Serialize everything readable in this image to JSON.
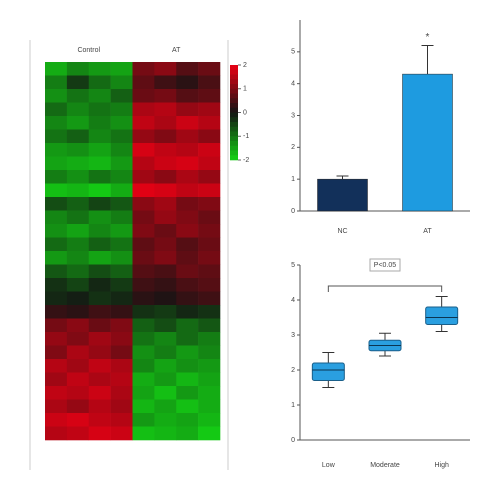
{
  "chart_data": [
    {
      "type": "heatmap",
      "col_groups": [
        "Control",
        "AT"
      ],
      "colorbar_ticks": [
        2,
        1,
        0,
        -1,
        -2
      ],
      "zlim": [
        -2,
        2
      ],
      "values": [
        [
          -1.6,
          -1.2,
          -1.4,
          -1.5,
          0.9,
          1.1,
          0.6,
          0.8
        ],
        [
          -1.1,
          -0.4,
          -0.9,
          -1.2,
          0.7,
          0.4,
          0.2,
          0.5
        ],
        [
          -1.3,
          -1.0,
          -1.2,
          -0.8,
          0.8,
          0.9,
          0.6,
          0.7
        ],
        [
          -0.9,
          -1.2,
          -1.0,
          -1.1,
          1.4,
          1.5,
          1.2,
          1.3
        ],
        [
          -1.2,
          -1.4,
          -1.1,
          -1.3,
          1.6,
          1.4,
          1.7,
          1.5
        ],
        [
          -1.0,
          -0.8,
          -1.2,
          -1.0,
          1.2,
          1.0,
          1.3,
          1.1
        ],
        [
          -1.4,
          -1.3,
          -1.5,
          -1.2,
          1.8,
          1.6,
          1.5,
          1.7
        ],
        [
          -1.5,
          -1.6,
          -1.7,
          -1.4,
          1.5,
          1.7,
          1.8,
          1.6
        ],
        [
          -1.1,
          -1.3,
          -1.0,
          -1.2,
          1.3,
          1.1,
          1.4,
          1.2
        ],
        [
          -1.8,
          -1.7,
          -1.9,
          -1.6,
          1.9,
          1.8,
          1.6,
          1.7
        ],
        [
          -0.6,
          -0.8,
          -0.5,
          -0.7,
          1.1,
          1.3,
          0.9,
          1.0
        ],
        [
          -1.2,
          -1.0,
          -1.3,
          -1.1,
          0.9,
          1.2,
          1.0,
          0.8
        ],
        [
          -1.3,
          -1.5,
          -1.2,
          -1.4,
          1.0,
          0.8,
          1.1,
          0.9
        ],
        [
          -0.9,
          -1.1,
          -0.8,
          -1.0,
          0.7,
          0.9,
          0.6,
          0.8
        ],
        [
          -1.4,
          -1.2,
          -1.5,
          -1.3,
          0.8,
          1.0,
          0.7,
          0.9
        ],
        [
          -0.7,
          -0.9,
          -0.6,
          -0.8,
          0.6,
          0.5,
          0.8,
          0.7
        ],
        [
          -0.3,
          -0.5,
          -0.2,
          -0.4,
          0.4,
          0.3,
          0.5,
          0.6
        ],
        [
          -0.2,
          -0.1,
          -0.3,
          -0.2,
          0.2,
          0.1,
          0.3,
          0.4
        ],
        [
          0.3,
          0.2,
          0.4,
          0.3,
          -0.3,
          -0.4,
          -0.2,
          -0.3
        ],
        [
          0.9,
          1.1,
          0.8,
          1.0,
          -0.8,
          -0.6,
          -0.9,
          -0.7
        ],
        [
          1.2,
          1.0,
          1.3,
          1.1,
          -1.0,
          -1.2,
          -0.9,
          -1.1
        ],
        [
          1.0,
          1.4,
          1.2,
          0.9,
          -1.3,
          -1.1,
          -1.4,
          -1.2
        ],
        [
          1.5,
          1.3,
          1.6,
          1.4,
          -1.2,
          -1.5,
          -1.3,
          -1.4
        ],
        [
          1.3,
          1.6,
          1.4,
          1.5,
          -1.6,
          -1.4,
          -1.7,
          -1.5
        ],
        [
          1.6,
          1.5,
          1.7,
          1.4,
          -1.5,
          -1.8,
          -1.4,
          -1.6
        ],
        [
          1.4,
          1.2,
          1.5,
          1.3,
          -1.7,
          -1.5,
          -1.8,
          -1.6
        ],
        [
          1.7,
          1.8,
          1.6,
          1.5,
          -1.4,
          -1.6,
          -1.5,
          -1.7
        ],
        [
          1.5,
          1.6,
          1.8,
          1.7,
          -1.8,
          -1.7,
          -1.6,
          -1.9
        ]
      ]
    },
    {
      "type": "bar",
      "categories": [
        "NC",
        "AT"
      ],
      "values": [
        1.0,
        4.3
      ],
      "errors": [
        0.1,
        0.9
      ],
      "colors": [
        "#12305a",
        "#1e9be0"
      ],
      "annotations": [
        "*"
      ],
      "ylim": [
        0,
        6
      ],
      "yticks": [
        0,
        1,
        2,
        3,
        4,
        5
      ]
    },
    {
      "type": "box",
      "categories": [
        "Low",
        "Moderate",
        "High"
      ],
      "color": "#2a9fe0",
      "min": [
        1.5,
        2.4,
        3.1
      ],
      "q1": [
        1.7,
        2.55,
        3.3
      ],
      "median": [
        2.0,
        2.7,
        3.5
      ],
      "q3": [
        2.2,
        2.85,
        3.8
      ],
      "max": [
        2.5,
        3.05,
        4.1
      ],
      "annotation": "P<0.05",
      "ylim": [
        0,
        5
      ],
      "yticks": [
        0,
        1,
        2,
        3,
        4,
        5
      ]
    }
  ]
}
